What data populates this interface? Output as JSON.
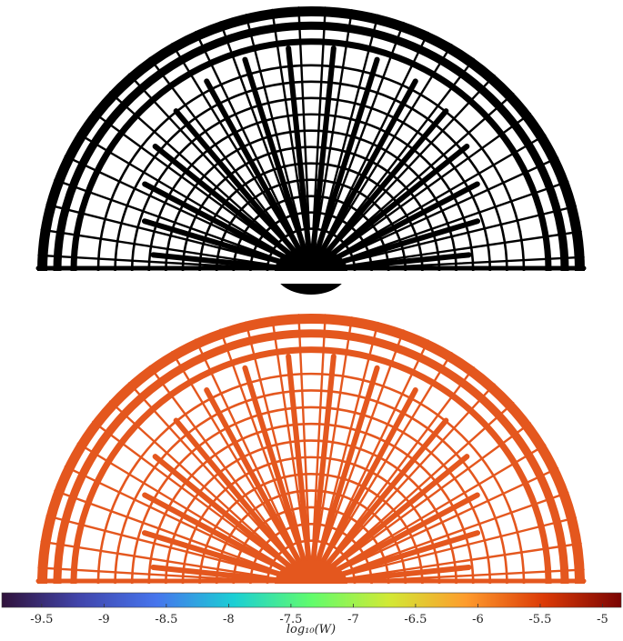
{
  "colorbar": {
    "label": "log₁₀(W)",
    "lim": [
      -9.82,
      -4.85
    ],
    "ticks": [
      -9.5,
      -9,
      -8.5,
      -8,
      -7.5,
      -7,
      -6.5,
      -6,
      -5.5,
      -5
    ],
    "colormap": "jet"
  }
}
